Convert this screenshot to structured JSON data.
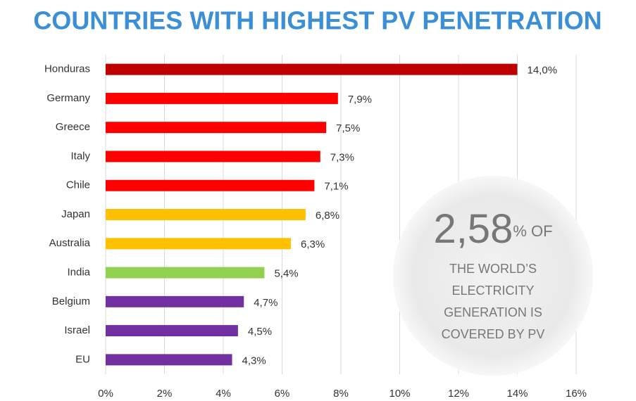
{
  "chart_data": {
    "type": "bar",
    "orientation": "horizontal",
    "title": "COUNTRIES WITH HIGHEST PV PENETRATION",
    "categories": [
      "Honduras",
      "Germany",
      "Greece",
      "Italy",
      "Chile",
      "Japan",
      "Australia",
      "India",
      "Belgium",
      "Israel",
      "EU"
    ],
    "values": [
      14.0,
      7.9,
      7.5,
      7.3,
      7.1,
      6.8,
      6.3,
      5.4,
      4.7,
      4.5,
      4.3
    ],
    "value_labels": [
      "14,0%",
      "7,9%",
      "7,5%",
      "7,3%",
      "7,1%",
      "6,8%",
      "6,3%",
      "5,4%",
      "4,7%",
      "4,5%",
      "4,3%"
    ],
    "colors": [
      "#c00000",
      "#ff0000",
      "#ff0000",
      "#ff0000",
      "#ff0000",
      "#ffc000",
      "#ffc000",
      "#92d050",
      "#7030a0",
      "#7030a0",
      "#7030a0"
    ],
    "xlim": [
      0,
      16
    ],
    "xticks": [
      {
        "value": 0,
        "label": "0%"
      },
      {
        "value": 2,
        "label": "2%"
      },
      {
        "value": 4,
        "label": "4%"
      },
      {
        "value": 6,
        "label": "6%"
      },
      {
        "value": 8,
        "label": "8%"
      },
      {
        "value": 10,
        "label": "10%"
      },
      {
        "value": 12,
        "label": "12%"
      },
      {
        "value": 14,
        "label": "14%"
      },
      {
        "value": 16,
        "label": "16%"
      }
    ],
    "grid": true,
    "annotation": {
      "big": "2,58",
      "small": "% OF",
      "lines": [
        "THE WORLD’S",
        "ELECTRICITY",
        "GENERATION IS",
        "COVERED BY PV"
      ]
    }
  }
}
